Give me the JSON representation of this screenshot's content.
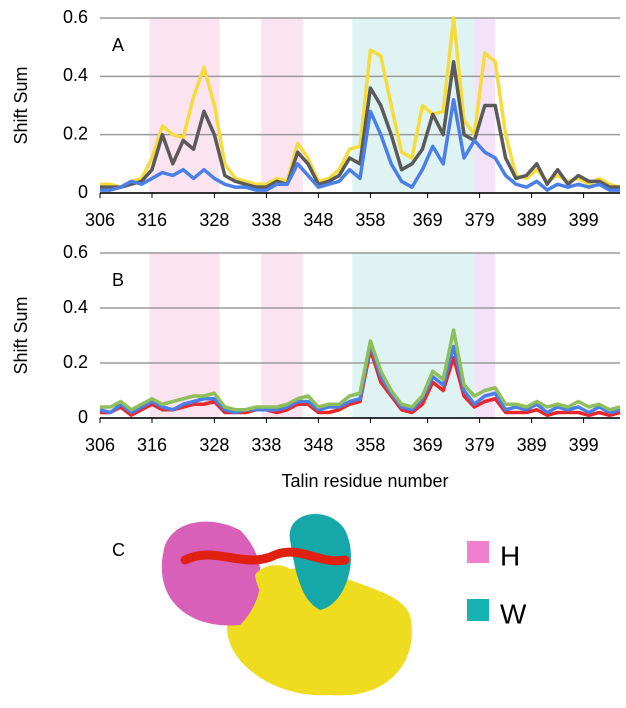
{
  "chart_data": [
    {
      "type": "line",
      "panel_label": "A",
      "y_label": "Shift Sum",
      "xlim": [
        306,
        406
      ],
      "xticks": [
        306,
        316,
        328,
        338,
        348,
        358,
        369,
        379,
        389,
        399
      ],
      "ylim": [
        0,
        0.6
      ],
      "yticks": [
        0,
        0.2,
        0.4,
        0.6
      ],
      "grid": true,
      "shaded_regions": [
        {
          "from": 315.5,
          "to": 329,
          "color": "#fbe4f0"
        },
        {
          "from": 337,
          "to": 345,
          "color": "#fbe4f0"
        },
        {
          "from": 354.5,
          "to": 378,
          "color": "#dff4f2"
        },
        {
          "from": 378,
          "to": 382,
          "color": "#f4e2f8"
        }
      ],
      "x": [
        306,
        308,
        310,
        312,
        314,
        316,
        318,
        320,
        322,
        324,
        326,
        328,
        330,
        332,
        334,
        336,
        338,
        340,
        342,
        344,
        346,
        348,
        350,
        352,
        354,
        356,
        358,
        360,
        362,
        364,
        366,
        368,
        370,
        372,
        374,
        376,
        378,
        380,
        382,
        384,
        386,
        388,
        390,
        392,
        394,
        396,
        398,
        400,
        402,
        404,
        406
      ],
      "series": [
        {
          "color": "#f5dc3c",
          "values": [
            0.03,
            0.03,
            0.02,
            0.04,
            0.05,
            0.12,
            0.23,
            0.2,
            0.19,
            0.33,
            0.43,
            0.3,
            0.1,
            0.05,
            0.04,
            0.03,
            0.03,
            0.05,
            0.04,
            0.17,
            0.12,
            0.04,
            0.05,
            0.08,
            0.15,
            0.16,
            0.49,
            0.47,
            0.3,
            0.14,
            0.12,
            0.3,
            0.27,
            0.28,
            0.6,
            0.25,
            0.2,
            0.48,
            0.45,
            0.2,
            0.06,
            0.05,
            0.08,
            0.04,
            0.06,
            0.04,
            0.05,
            0.03,
            0.05,
            0.03,
            0.02
          ]
        },
        {
          "color": "#5a5a5a",
          "values": [
            0.02,
            0.02,
            0.02,
            0.03,
            0.04,
            0.08,
            0.2,
            0.1,
            0.18,
            0.15,
            0.28,
            0.2,
            0.06,
            0.04,
            0.03,
            0.02,
            0.02,
            0.04,
            0.03,
            0.14,
            0.1,
            0.03,
            0.04,
            0.06,
            0.12,
            0.1,
            0.36,
            0.3,
            0.2,
            0.08,
            0.1,
            0.15,
            0.27,
            0.2,
            0.45,
            0.2,
            0.18,
            0.3,
            0.3,
            0.12,
            0.05,
            0.06,
            0.1,
            0.03,
            0.08,
            0.03,
            0.06,
            0.04,
            0.04,
            0.02,
            0.02
          ]
        },
        {
          "color": "#4a7fe8",
          "values": [
            0.01,
            0.01,
            0.02,
            0.04,
            0.03,
            0.05,
            0.07,
            0.06,
            0.08,
            0.05,
            0.08,
            0.05,
            0.03,
            0.02,
            0.02,
            0.01,
            0.01,
            0.03,
            0.03,
            0.1,
            0.06,
            0.02,
            0.03,
            0.04,
            0.08,
            0.05,
            0.28,
            0.2,
            0.1,
            0.04,
            0.02,
            0.08,
            0.16,
            0.1,
            0.32,
            0.12,
            0.18,
            0.14,
            0.12,
            0.06,
            0.03,
            0.02,
            0.04,
            0.01,
            0.03,
            0.02,
            0.03,
            0.02,
            0.03,
            0.01,
            0.01
          ]
        }
      ]
    },
    {
      "type": "line",
      "panel_label": "B",
      "y_label": "Shift Sum",
      "x_label": "Talin residue number",
      "xlim": [
        306,
        406
      ],
      "xticks": [
        306,
        316,
        328,
        338,
        348,
        358,
        369,
        379,
        389,
        399
      ],
      "ylim": [
        0,
        0.6
      ],
      "yticks": [
        0,
        0.2,
        0.4,
        0.6
      ],
      "grid": true,
      "shaded_regions": [
        {
          "from": 315.5,
          "to": 329,
          "color": "#fbe4f0"
        },
        {
          "from": 337,
          "to": 345,
          "color": "#fbe4f0"
        },
        {
          "from": 354.5,
          "to": 378,
          "color": "#dff4f2"
        },
        {
          "from": 378,
          "to": 382,
          "color": "#f4e2f8"
        }
      ],
      "x": [
        306,
        308,
        310,
        312,
        314,
        316,
        318,
        320,
        322,
        324,
        326,
        328,
        330,
        332,
        334,
        336,
        338,
        340,
        342,
        344,
        346,
        348,
        350,
        352,
        354,
        356,
        358,
        360,
        362,
        364,
        366,
        368,
        370,
        372,
        374,
        376,
        378,
        380,
        382,
        384,
        386,
        388,
        390,
        392,
        394,
        396,
        398,
        400,
        402,
        404,
        406
      ],
      "series": [
        {
          "color": "#e8282a",
          "values": [
            0.02,
            0.02,
            0.04,
            0.01,
            0.03,
            0.05,
            0.03,
            0.03,
            0.04,
            0.05,
            0.05,
            0.06,
            0.02,
            0.02,
            0.02,
            0.03,
            0.03,
            0.02,
            0.03,
            0.05,
            0.05,
            0.02,
            0.02,
            0.03,
            0.05,
            0.06,
            0.25,
            0.13,
            0.08,
            0.03,
            0.02,
            0.05,
            0.13,
            0.1,
            0.22,
            0.08,
            0.04,
            0.06,
            0.07,
            0.02,
            0.02,
            0.02,
            0.03,
            0.01,
            0.02,
            0.02,
            0.02,
            0.01,
            0.02,
            0.01,
            0.02
          ]
        },
        {
          "color": "#4a7fe8",
          "values": [
            0.03,
            0.02,
            0.05,
            0.02,
            0.04,
            0.06,
            0.04,
            0.03,
            0.05,
            0.06,
            0.07,
            0.07,
            0.03,
            0.02,
            0.03,
            0.03,
            0.03,
            0.03,
            0.04,
            0.06,
            0.06,
            0.03,
            0.04,
            0.04,
            0.06,
            0.07,
            0.27,
            0.15,
            0.09,
            0.04,
            0.03,
            0.07,
            0.15,
            0.12,
            0.26,
            0.1,
            0.05,
            0.08,
            0.09,
            0.03,
            0.04,
            0.03,
            0.05,
            0.02,
            0.04,
            0.03,
            0.04,
            0.02,
            0.04,
            0.02,
            0.03
          ]
        },
        {
          "color": "#8fbf5a",
          "values": [
            0.04,
            0.04,
            0.06,
            0.03,
            0.05,
            0.07,
            0.05,
            0.06,
            0.07,
            0.08,
            0.08,
            0.09,
            0.04,
            0.03,
            0.03,
            0.04,
            0.04,
            0.04,
            0.05,
            0.07,
            0.08,
            0.04,
            0.05,
            0.05,
            0.08,
            0.09,
            0.28,
            0.17,
            0.1,
            0.05,
            0.04,
            0.08,
            0.17,
            0.14,
            0.32,
            0.12,
            0.08,
            0.1,
            0.11,
            0.05,
            0.05,
            0.04,
            0.06,
            0.04,
            0.05,
            0.04,
            0.06,
            0.04,
            0.05,
            0.03,
            0.04
          ]
        }
      ]
    }
  ],
  "panel_c": {
    "label": "C",
    "legend": [
      {
        "label": "H",
        "color": "#f07fd0"
      },
      {
        "label": "W",
        "color": "#17b3b3"
      }
    ]
  }
}
